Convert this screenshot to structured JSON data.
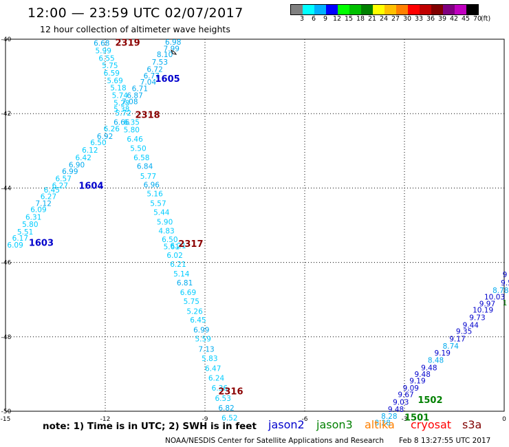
{
  "header": {
    "title": "12:00 — 23:59 UTC 02/07/2017",
    "subtitle": "12 hour collection of altimeter wave heights"
  },
  "legend": {
    "colors": [
      "#808080",
      "#00ffff",
      "#00b0ff",
      "#0000ff",
      "#00ff00",
      "#00c000",
      "#008000",
      "#ffff00",
      "#ffc000",
      "#ff8000",
      "#ff0000",
      "#c00000",
      "#800000",
      "#800080",
      "#c000c0",
      "#000000"
    ],
    "ticks": [
      "3",
      "6",
      "9",
      "12",
      "15",
      "18",
      "21",
      "24",
      "27",
      "30",
      "33",
      "36",
      "39",
      "42",
      "45",
      "70",
      "(ft)"
    ]
  },
  "chart_data": {
    "type": "scatter",
    "xlim": [
      -15,
      0
    ],
    "ylim": [
      -50,
      -40
    ],
    "x_ticks": [
      "-15",
      "-12",
      "-9",
      "-6",
      "-3",
      "0"
    ],
    "y_ticks": [
      "-40",
      "-42",
      "-44",
      "-46",
      "-48",
      "-50"
    ],
    "track_labels": [
      {
        "text": "2319",
        "x": -11.7,
        "y": -40.18,
        "color": "#8b0000"
      },
      {
        "text": "1605",
        "x": -10.5,
        "y": -41.15,
        "color": "#0000cc"
      },
      {
        "text": "2318",
        "x": -11.1,
        "y": -42.12,
        "color": "#8b0000"
      },
      {
        "text": "1604",
        "x": -12.8,
        "y": -44.02,
        "color": "#0000cc"
      },
      {
        "text": "1603",
        "x": -14.3,
        "y": -45.55,
        "color": "#0000cc"
      },
      {
        "text": "2317",
        "x": -9.8,
        "y": -45.58,
        "color": "#8b0000"
      },
      {
        "text": "2316",
        "x": -8.6,
        "y": -49.55,
        "color": "#8b0000"
      },
      {
        "text": "1502",
        "x": -2.6,
        "y": -49.78,
        "color": "#008000"
      },
      {
        "text": "1501",
        "x": -3.0,
        "y": -50.25,
        "color": "#008000"
      }
    ],
    "points": [
      {
        "x": -12.35,
        "y": -40.18,
        "v": "6.68",
        "c": "#00aaee"
      },
      {
        "x": -12.3,
        "y": -40.38,
        "v": "5.99",
        "c": "#00ccff"
      },
      {
        "x": -12.2,
        "y": -40.58,
        "v": "6.55",
        "c": "#00ccff"
      },
      {
        "x": -12.1,
        "y": -40.78,
        "v": "5.75",
        "c": "#00ccff"
      },
      {
        "x": -12.05,
        "y": -40.98,
        "v": "6.59",
        "c": "#00ccff"
      },
      {
        "x": -11.95,
        "y": -41.18,
        "v": "5.69",
        "c": "#00ccff"
      },
      {
        "x": -11.85,
        "y": -41.38,
        "v": "5.18",
        "c": "#00ccff"
      },
      {
        "x": -11.8,
        "y": -41.58,
        "v": "5.74",
        "c": "#00ccff"
      },
      {
        "x": -11.75,
        "y": -41.78,
        "v": "5.28",
        "c": "#00ccff"
      },
      {
        "x": -11.75,
        "y": -41.95,
        "v": "5.38",
        "c": "#00ccff"
      },
      {
        "x": -10.2,
        "y": -40.15,
        "v": "6.98",
        "c": "#00aaee"
      },
      {
        "x": -10.25,
        "y": -40.32,
        "v": "7.99",
        "c": "#00aaee"
      },
      {
        "x": -10.45,
        "y": -40.48,
        "v": "8.10",
        "c": "#00aaee"
      },
      {
        "x": -10.6,
        "y": -40.68,
        "v": "7.53",
        "c": "#00aaee"
      },
      {
        "x": -10.75,
        "y": -40.88,
        "v": "6.72",
        "c": "#00aaee"
      },
      {
        "x": -10.85,
        "y": -41.05,
        "v": "6.77",
        "c": "#00aaee"
      },
      {
        "x": -10.95,
        "y": -41.22,
        "v": "7.04",
        "c": "#00aaee"
      },
      {
        "x": -11.2,
        "y": -41.4,
        "v": "6.71",
        "c": "#00aaee"
      },
      {
        "x": -11.35,
        "y": -41.58,
        "v": "6.87",
        "c": "#00aaee"
      },
      {
        "x": -11.5,
        "y": -41.75,
        "v": "7.08",
        "c": "#00aaee"
      },
      {
        "x": -11.7,
        "y": -42.05,
        "v": "5.72",
        "c": "#00ccff"
      },
      {
        "x": -11.75,
        "y": -42.3,
        "v": "6.66",
        "c": "#00aaee"
      },
      {
        "x": -11.45,
        "y": -42.3,
        "v": "6.35",
        "c": "#00ccff"
      },
      {
        "x": -12.05,
        "y": -42.48,
        "v": "6.26",
        "c": "#00ccff"
      },
      {
        "x": -12.25,
        "y": -42.68,
        "v": "6.92",
        "c": "#00aaee"
      },
      {
        "x": -12.45,
        "y": -42.85,
        "v": "6.50",
        "c": "#00ccff"
      },
      {
        "x": -12.7,
        "y": -43.05,
        "v": "6.12",
        "c": "#00ccff"
      },
      {
        "x": -12.9,
        "y": -43.25,
        "v": "6.42",
        "c": "#00ccff"
      },
      {
        "x": -13.1,
        "y": -43.45,
        "v": "6.90",
        "c": "#00aaee"
      },
      {
        "x": -13.3,
        "y": -43.62,
        "v": "6.99",
        "c": "#00aaee"
      },
      {
        "x": -13.5,
        "y": -43.82,
        "v": "6.57",
        "c": "#00ccff"
      },
      {
        "x": -13.6,
        "y": -44.0,
        "v": "6.27",
        "c": "#00ccff"
      },
      {
        "x": -13.85,
        "y": -44.12,
        "v": "6.45",
        "c": "#00ccff"
      },
      {
        "x": -13.95,
        "y": -44.3,
        "v": "6.27",
        "c": "#00ccff"
      },
      {
        "x": -14.1,
        "y": -44.48,
        "v": "7.12",
        "c": "#00aaee"
      },
      {
        "x": -14.25,
        "y": -44.65,
        "v": "6.09",
        "c": "#00ccff"
      },
      {
        "x": -14.4,
        "y": -44.85,
        "v": "6.31",
        "c": "#00ccff"
      },
      {
        "x": -14.5,
        "y": -45.05,
        "v": "5.80",
        "c": "#00ccff"
      },
      {
        "x": -14.65,
        "y": -45.25,
        "v": "5.51",
        "c": "#00ccff"
      },
      {
        "x": -14.8,
        "y": -45.42,
        "v": "6.17",
        "c": "#00ccff"
      },
      {
        "x": -14.95,
        "y": -45.6,
        "v": "6.09",
        "c": "#00ccff"
      },
      {
        "x": -11.45,
        "y": -42.5,
        "v": "5.80",
        "c": "#00ccff"
      },
      {
        "x": -11.35,
        "y": -42.75,
        "v": "6.46",
        "c": "#00ccff"
      },
      {
        "x": -11.25,
        "y": -43.0,
        "v": "5.50",
        "c": "#00ccff"
      },
      {
        "x": -11.15,
        "y": -43.25,
        "v": "6.58",
        "c": "#00ccff"
      },
      {
        "x": -11.05,
        "y": -43.48,
        "v": "6.84",
        "c": "#00aaee"
      },
      {
        "x": -10.95,
        "y": -43.75,
        "v": "5.77",
        "c": "#00ccff"
      },
      {
        "x": -10.85,
        "y": -43.98,
        "v": "6.96",
        "c": "#00aaee"
      },
      {
        "x": -10.75,
        "y": -44.22,
        "v": "5.16",
        "c": "#00ccff"
      },
      {
        "x": -10.65,
        "y": -44.48,
        "v": "5.57",
        "c": "#00ccff"
      },
      {
        "x": -10.55,
        "y": -44.72,
        "v": "5.44",
        "c": "#00ccff"
      },
      {
        "x": -10.45,
        "y": -44.98,
        "v": "5.90",
        "c": "#00ccff"
      },
      {
        "x": -10.4,
        "y": -45.22,
        "v": "4.83",
        "c": "#00ccff"
      },
      {
        "x": -10.3,
        "y": -45.45,
        "v": "6.50",
        "c": "#00ccff"
      },
      {
        "x": -10.25,
        "y": -45.65,
        "v": "5.61",
        "c": "#00ccff"
      },
      {
        "x": -10.05,
        "y": -45.62,
        "v": "6.21",
        "c": "#00ccff"
      },
      {
        "x": -10.15,
        "y": -45.88,
        "v": "6.02",
        "c": "#00ccff"
      },
      {
        "x": -10.05,
        "y": -46.12,
        "v": "6.21",
        "c": "#00ccff"
      },
      {
        "x": -9.95,
        "y": -46.38,
        "v": "5.14",
        "c": "#00ccff"
      },
      {
        "x": -9.85,
        "y": -46.62,
        "v": "6.81",
        "c": "#00aaee"
      },
      {
        "x": -9.75,
        "y": -46.88,
        "v": "6.69",
        "c": "#00ccff"
      },
      {
        "x": -9.65,
        "y": -47.12,
        "v": "5.75",
        "c": "#00ccff"
      },
      {
        "x": -9.55,
        "y": -47.38,
        "v": "5.26",
        "c": "#00ccff"
      },
      {
        "x": -9.45,
        "y": -47.62,
        "v": "6.45",
        "c": "#00ccff"
      },
      {
        "x": -9.35,
        "y": -47.88,
        "v": "6.99",
        "c": "#00aaee"
      },
      {
        "x": -9.3,
        "y": -48.12,
        "v": "5.59",
        "c": "#00ccff"
      },
      {
        "x": -9.2,
        "y": -48.4,
        "v": "7.13",
        "c": "#00aaee"
      },
      {
        "x": -9.1,
        "y": -48.65,
        "v": "5.83",
        "c": "#00ccff"
      },
      {
        "x": -9.0,
        "y": -48.92,
        "v": "6.47",
        "c": "#00ccff"
      },
      {
        "x": -8.9,
        "y": -49.18,
        "v": "6.24",
        "c": "#00ccff"
      },
      {
        "x": -8.8,
        "y": -49.45,
        "v": "6.36",
        "c": "#00ccff"
      },
      {
        "x": -8.7,
        "y": -49.72,
        "v": "6.53",
        "c": "#00ccff"
      },
      {
        "x": -8.6,
        "y": -49.98,
        "v": "6.82",
        "c": "#00aaee"
      },
      {
        "x": -8.5,
        "y": -50.25,
        "v": "6.52",
        "c": "#00ccff"
      },
      {
        "x": -0.05,
        "y": -46.4,
        "v": "9",
        "c": "#0000cc"
      },
      {
        "x": -0.1,
        "y": -46.62,
        "v": "9.5",
        "c": "#0000cc"
      },
      {
        "x": -0.35,
        "y": -46.82,
        "v": "8.78",
        "c": "#00aaee"
      },
      {
        "x": -0.6,
        "y": -47.0,
        "v": "10.03",
        "c": "#0000cc"
      },
      {
        "x": -0.05,
        "y": -47.15,
        "v": "1",
        "c": "#008000"
      },
      {
        "x": -0.75,
        "y": -47.18,
        "v": "9.97",
        "c": "#0000cc"
      },
      {
        "x": -0.95,
        "y": -47.35,
        "v": "10.19",
        "c": "#0000cc"
      },
      {
        "x": -1.05,
        "y": -47.55,
        "v": "9.73",
        "c": "#0000cc"
      },
      {
        "x": -1.25,
        "y": -47.75,
        "v": "9.44",
        "c": "#0000cc"
      },
      {
        "x": -1.45,
        "y": -47.92,
        "v": "9.35",
        "c": "#0000cc"
      },
      {
        "x": -1.65,
        "y": -48.12,
        "v": "9.17",
        "c": "#0000cc"
      },
      {
        "x": -1.85,
        "y": -48.32,
        "v": "8.74",
        "c": "#00aaee"
      },
      {
        "x": -2.1,
        "y": -48.5,
        "v": "9.19",
        "c": "#0000cc"
      },
      {
        "x": -2.3,
        "y": -48.7,
        "v": "8.48",
        "c": "#00aaee"
      },
      {
        "x": -2.5,
        "y": -48.9,
        "v": "9.48",
        "c": "#0000cc"
      },
      {
        "x": -2.7,
        "y": -49.08,
        "v": "9.48",
        "c": "#0000cc"
      },
      {
        "x": -2.85,
        "y": -49.25,
        "v": "9.19",
        "c": "#0000cc"
      },
      {
        "x": -3.05,
        "y": -49.45,
        "v": "9.09",
        "c": "#0000cc"
      },
      {
        "x": -3.2,
        "y": -49.62,
        "v": "9.67",
        "c": "#0000cc"
      },
      {
        "x": -3.35,
        "y": -49.82,
        "v": "9.03",
        "c": "#0000cc"
      },
      {
        "x": -3.5,
        "y": -50.02,
        "v": "9.48",
        "c": "#0000cc"
      },
      {
        "x": -3.7,
        "y": -50.2,
        "v": "8.28",
        "c": "#00aaee"
      },
      {
        "x": -3.9,
        "y": -50.38,
        "v": "8.28",
        "c": "#00aaee"
      }
    ]
  },
  "footer": {
    "note": "note:  1) Time is in UTC;  2) SWH is in feet",
    "missions": [
      {
        "name": "jason2",
        "color": "#0000cc"
      },
      {
        "name": "jason3",
        "color": "#008000"
      },
      {
        "name": "altika",
        "color": "#ff8000"
      },
      {
        "name": "cryosat",
        "color": "#ff0000"
      },
      {
        "name": "s3a",
        "color": "#800000"
      }
    ],
    "credit": "NOAA/NESDIS Center for Satellite Applications and Research",
    "timestamp": "Feb  8 13:27:55 UTC 2017"
  }
}
